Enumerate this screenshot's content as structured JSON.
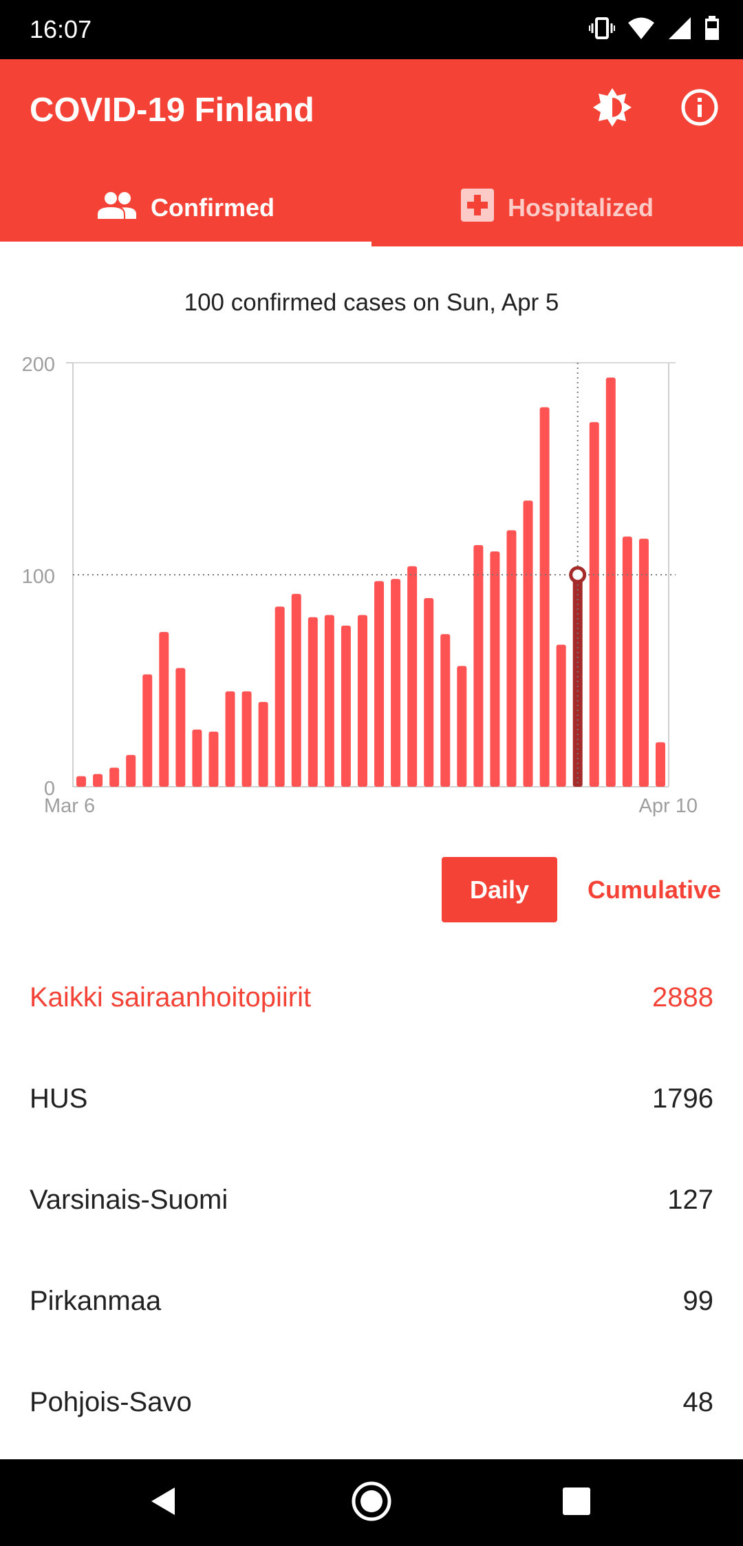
{
  "status_bar": {
    "time": "16:07",
    "icons": [
      "vibrate-icon",
      "wifi-icon",
      "signal-icon",
      "battery-icon"
    ]
  },
  "app_bar": {
    "title": "COVID-19 Finland",
    "actions": [
      "brightness-icon",
      "info-icon"
    ],
    "color": "#f44336"
  },
  "tabs": [
    {
      "label": "Confirmed",
      "icon": "people-icon",
      "selected": true
    },
    {
      "label": "Hospitalized",
      "icon": "hospital-cross-icon",
      "selected": false
    }
  ],
  "chart_caption": "100 confirmed cases on Sun, Apr 5",
  "chart_data": {
    "type": "bar",
    "x_start_label": "Mar 6",
    "x_end_label": "Apr 10",
    "categories": [
      "Mar 6",
      "Mar 7",
      "Mar 8",
      "Mar 9",
      "Mar 10",
      "Mar 11",
      "Mar 12",
      "Mar 13",
      "Mar 14",
      "Mar 15",
      "Mar 16",
      "Mar 17",
      "Mar 18",
      "Mar 19",
      "Mar 20",
      "Mar 21",
      "Mar 22",
      "Mar 23",
      "Mar 24",
      "Mar 25",
      "Mar 26",
      "Mar 27",
      "Mar 28",
      "Mar 29",
      "Mar 30",
      "Mar 31",
      "Apr 1",
      "Apr 2",
      "Apr 3",
      "Apr 4",
      "Apr 5",
      "Apr 6",
      "Apr 7",
      "Apr 8",
      "Apr 9",
      "Apr 10"
    ],
    "values": [
      5,
      6,
      9,
      15,
      53,
      73,
      56,
      27,
      26,
      45,
      45,
      40,
      85,
      91,
      80,
      81,
      76,
      81,
      97,
      98,
      104,
      89,
      72,
      57,
      114,
      111,
      121,
      135,
      179,
      67,
      100,
      172,
      193,
      118,
      117,
      21
    ],
    "highlight_index": 30,
    "yticks": [
      0,
      100,
      200
    ],
    "ylim": [
      0,
      200
    ],
    "reference_value": 100,
    "bar_color": "#ff5252",
    "highlight_color": "#a52a2a",
    "grid": false
  },
  "toggle": {
    "daily_label": "Daily",
    "cumulative_label": "Cumulative",
    "selected": "Daily"
  },
  "regions": [
    {
      "name": "Kaikki sairaanhoitopiirit",
      "count": "2888",
      "highlight": true
    },
    {
      "name": "HUS",
      "count": "1796",
      "highlight": false
    },
    {
      "name": "Varsinais-Suomi",
      "count": "127",
      "highlight": false
    },
    {
      "name": "Pirkanmaa",
      "count": "99",
      "highlight": false
    },
    {
      "name": "Pohjois-Savo",
      "count": "48",
      "highlight": false
    }
  ],
  "nav_bar": {
    "buttons": [
      "back-icon",
      "home-icon",
      "recents-icon"
    ]
  }
}
